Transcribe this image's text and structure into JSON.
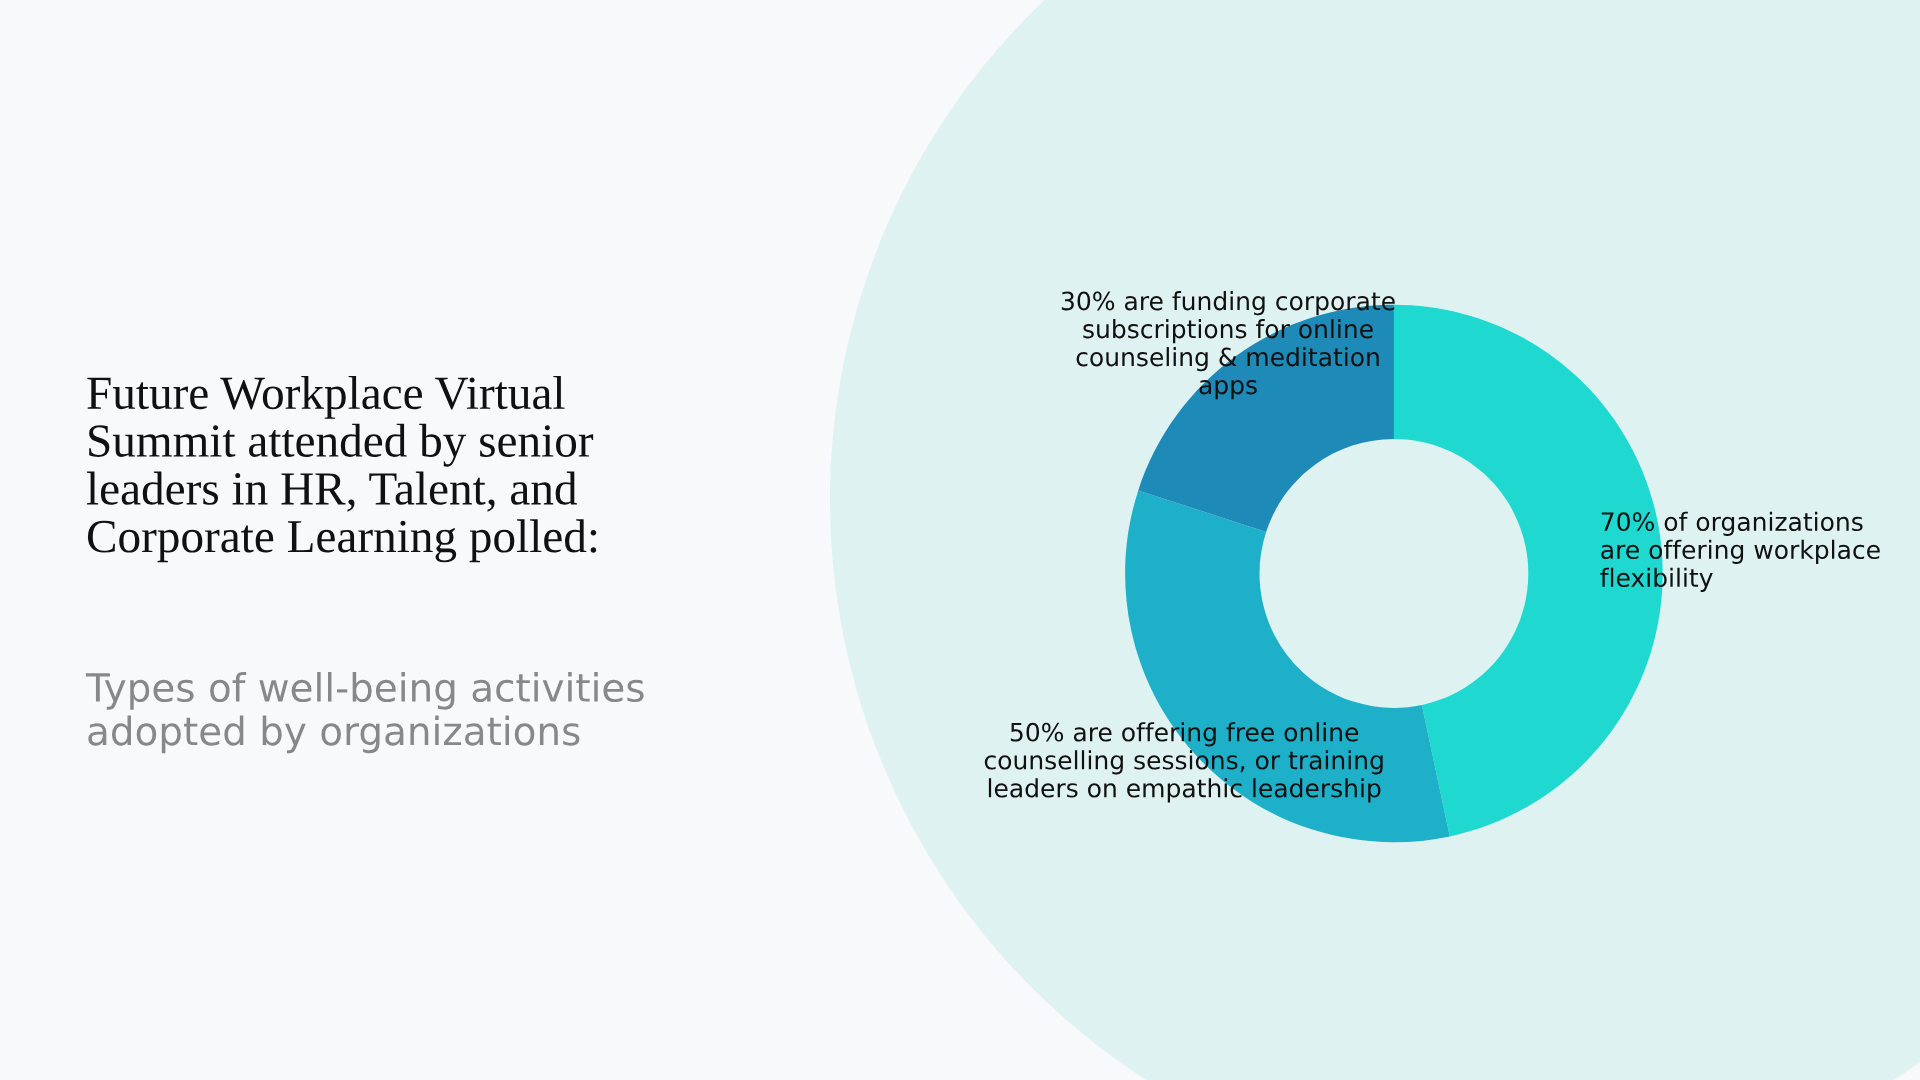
{
  "chart_data": {
    "type": "donut",
    "title": "Future Workplace Virtual\nSummit attended by senior\nleaders in HR, Talent, and\nCorporate Learning polled:",
    "subtitle": "Types of well-being activities\nadopted by organizations",
    "categories": [
      "70% of organizations\nare offering workplace\nflexibility",
      "50% are offering free online\ncounselling sessions, or training\nleaders on empathic leadership",
      "30% are funding corporate\nsubscriptions for online\ncounseling & meditation\napps"
    ],
    "values": [
      70,
      50,
      30
    ],
    "colors": [
      "#1fd8cf",
      "#1eb0c9",
      "#1e8ab8"
    ]
  }
}
